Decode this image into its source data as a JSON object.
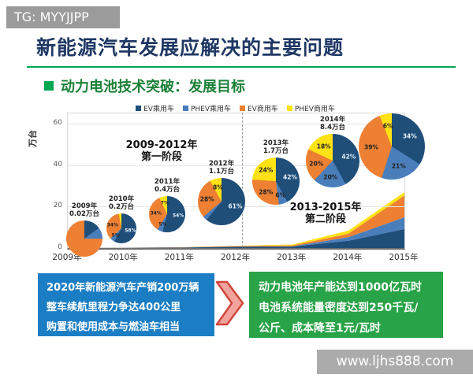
{
  "header": {
    "tg_tag": "TG: MYYJJPP",
    "title": "新能源汽车发展应解决的主要问题",
    "section": "动力电池技术突破：发展目标"
  },
  "chart_data": {
    "type": "area",
    "title": "",
    "ylabel": "万台",
    "ylim": [
      0,
      65
    ],
    "yticks": [
      0,
      20,
      40,
      60
    ],
    "categories": [
      "2009年",
      "2010年",
      "2011年",
      "2012年",
      "2013年",
      "2014年",
      "2015年"
    ],
    "legend": [
      "EV乘用车",
      "PHEV乘用车",
      "EV商用车",
      "PHEV商用车"
    ],
    "colors": [
      "#1f4e79",
      "#4a7ebb",
      "#ed8033",
      "#ffe213"
    ],
    "grid": "horizontal",
    "legend_position": "top",
    "phases": [
      {
        "line1": "2009-2012年",
        "line2": "第一阶段"
      },
      {
        "line1": "2013-2015年",
        "line2": "第二阶段"
      }
    ],
    "pies": [
      {
        "year": "2009年",
        "total": "0.02万台",
        "shares": [
          15,
          10,
          75,
          0
        ],
        "show_labels": false
      },
      {
        "year": "2010年",
        "total": "0.2万台",
        "shares": [
          58,
          5,
          34,
          3
        ],
        "show_labels": true
      },
      {
        "year": "2011年",
        "total": "0.4万台",
        "shares": [
          54,
          5,
          34,
          7
        ],
        "show_labels": true
      },
      {
        "year": "2012年",
        "total": "1.1万台",
        "shares": [
          61,
          3,
          28,
          8
        ],
        "show_labels": true
      },
      {
        "year": "2013年",
        "total": "1.7万台",
        "shares": [
          42,
          6,
          28,
          24
        ],
        "show_labels": true
      },
      {
        "year": "2014年",
        "total": "8.4万台",
        "shares": [
          42,
          20,
          20,
          18
        ],
        "show_labels": true
      },
      {
        "year": "",
        "total": "",
        "shares": [
          34,
          21,
          39,
          6
        ],
        "show_labels": true
      }
    ],
    "area_totals_est": [
      0.02,
      0.2,
      0.4,
      1.1,
      1.7,
      8.4,
      27
    ]
  },
  "callouts": {
    "left_lines": [
      "2020年新能源汽车产销200万辆",
      "整车续航里程力争达400公里",
      "购置和使用成本与燃油车相当"
    ],
    "right_lines": [
      "动力电池年产能达到1000亿瓦时",
      "电池系统能量密度达到250千瓦/",
      "公斤、成本降至1元/瓦时"
    ]
  },
  "footer": {
    "watermark": "www.ljhs888.com"
  }
}
